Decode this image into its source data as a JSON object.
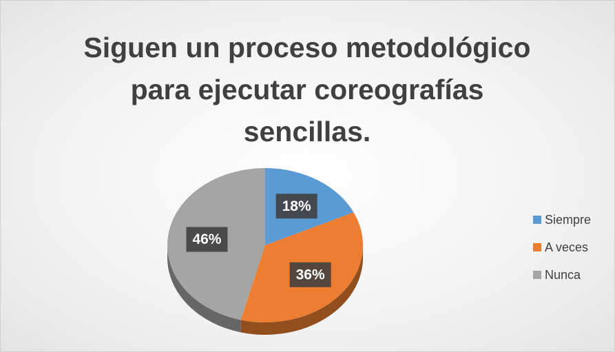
{
  "chart_data": {
    "type": "pie",
    "title": "Siguen un proceso metodológico para ejecutar coreografías sencillas.",
    "categories": [
      "Siempre",
      "A veces",
      "Nunca"
    ],
    "values": [
      18,
      36,
      46
    ],
    "value_labels": [
      "18%",
      "36%",
      "46%"
    ],
    "colors": [
      "#5b9bd5",
      "#ed7d31",
      "#a5a5a5"
    ],
    "legend": "right"
  }
}
